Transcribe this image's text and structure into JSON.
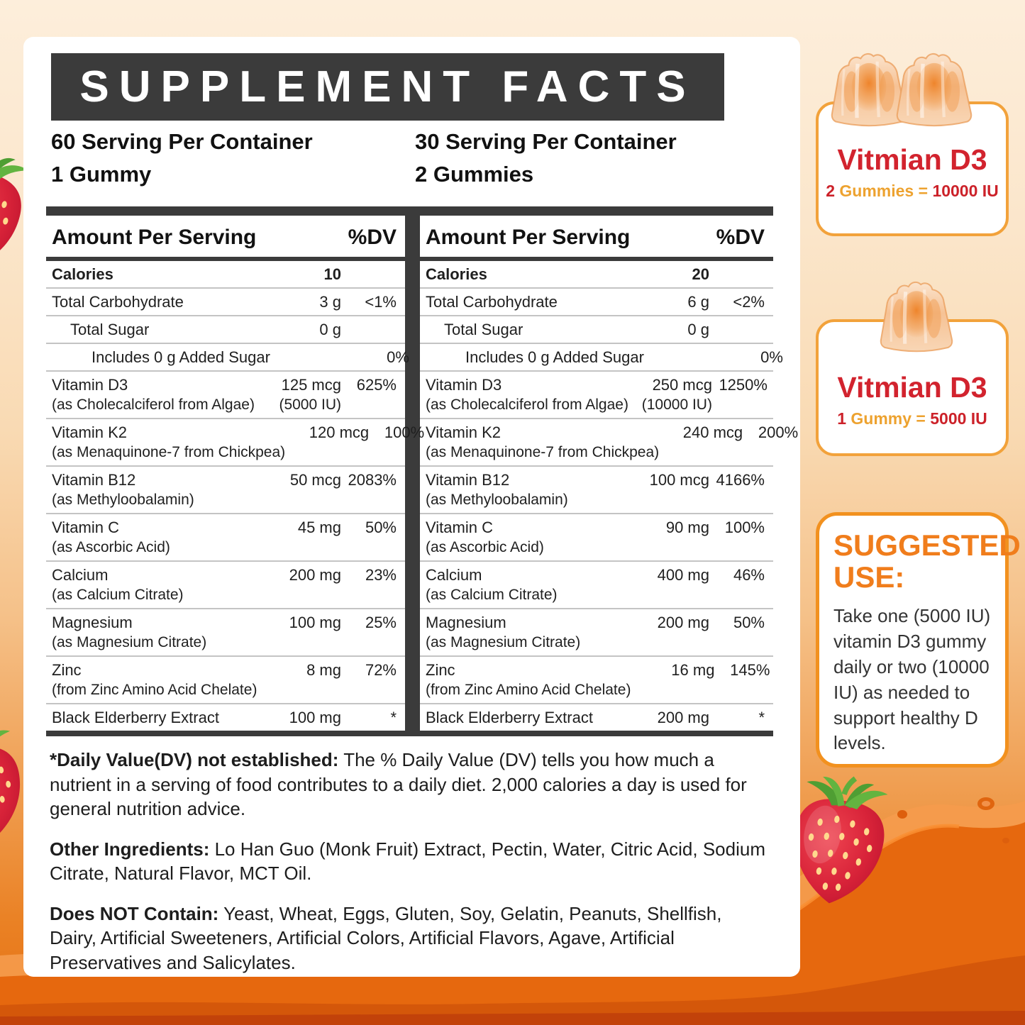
{
  "header": {
    "title": "SUPPLEMENT FACTS"
  },
  "servings": [
    {
      "line1": "60 Serving Per Container",
      "line2": "1 Gummy"
    },
    {
      "line1": "30 Serving Per Container",
      "line2": "2 Gummies"
    }
  ],
  "tables": [
    {
      "header": {
        "amount_label": "Amount Per Serving",
        "dv_label": "%DV"
      },
      "rows": [
        {
          "name": "Calories",
          "bold": true,
          "amount": "10",
          "dv": ""
        },
        {
          "name": "Total Carbohydrate",
          "amount": "3 g",
          "dv": "<1%"
        },
        {
          "name": "Total Sugar",
          "indent": 1,
          "amount": "0 g",
          "dv": ""
        },
        {
          "name": "Includes 0 g Added Sugar",
          "indent": 2,
          "amount": "",
          "dv": "0%"
        },
        {
          "name": "Vitamin D3",
          "sub": "(as Cholecalciferol from Algae)",
          "amount": "125 mcg",
          "amount2": "(5000 IU)",
          "dv": "625%"
        },
        {
          "name": "Vitamin K2",
          "sub": "(as Menaquinone-7 from Chickpea)",
          "amount": "120 mcg",
          "dv": "100%"
        },
        {
          "name": "Vitamin B12",
          "sub": "(as Methyloobalamin)",
          "amount": "50 mcg",
          "dv": "2083%"
        },
        {
          "name": "Vitamin C",
          "sub": "(as Ascorbic Acid)",
          "amount": "45 mg",
          "dv": "50%"
        },
        {
          "name": "Calcium",
          "sub": "(as Calcium Citrate)",
          "amount": "200 mg",
          "dv": "23%"
        },
        {
          "name": "Magnesium",
          "sub": "(as Magnesium Citrate)",
          "amount": "100 mg",
          "dv": "25%"
        },
        {
          "name": "Zinc",
          "sub": "(from Zinc Amino Acid Chelate)",
          "amount": "8 mg",
          "dv": "72%"
        },
        {
          "name": "Black Elderberry Extract",
          "amount": "100 mg",
          "dv": "*"
        }
      ]
    },
    {
      "header": {
        "amount_label": "Amount Per Serving",
        "dv_label": "%DV"
      },
      "rows": [
        {
          "name": "Calories",
          "bold": true,
          "amount": "20",
          "dv": ""
        },
        {
          "name": "Total Carbohydrate",
          "amount": "6 g",
          "dv": "<2%"
        },
        {
          "name": "Total Sugar",
          "indent": 1,
          "amount": "0 g",
          "dv": ""
        },
        {
          "name": "Includes 0 g Added Sugar",
          "indent": 2,
          "amount": "",
          "dv": "0%"
        },
        {
          "name": "Vitamin D3",
          "sub": "(as Cholecalciferol from Algae)",
          "amount": "250 mcg",
          "amount2": "(10000 IU)",
          "dv": "1250%"
        },
        {
          "name": "Vitamin K2",
          "sub": "(as Menaquinone-7 from Chickpea)",
          "amount": "240 mcg",
          "dv": "200%"
        },
        {
          "name": "Vitamin B12",
          "sub": "(as Methyloobalamin)",
          "amount": "100 mcg",
          "dv": "4166%"
        },
        {
          "name": "Vitamin C",
          "sub": "(as Ascorbic Acid)",
          "amount": "90 mg",
          "dv": "100%"
        },
        {
          "name": "Calcium",
          "sub": "(as Calcium Citrate)",
          "amount": "400 mg",
          "dv": "46%"
        },
        {
          "name": "Magnesium",
          "sub": "(as Magnesium Citrate)",
          "amount": "200 mg",
          "dv": "50%"
        },
        {
          "name": "Zinc",
          "sub": "(from Zinc Amino Acid Chelate)",
          "amount": "16 mg",
          "dv": "145%"
        },
        {
          "name": "Black Elderberry Extract",
          "amount": "200 mg",
          "dv": "*"
        }
      ]
    }
  ],
  "footnotes": [
    {
      "bold": "*Daily Value(DV) not established:",
      "text": " The % Daily Value (DV) tells you how much a nutrient in a serving of food contributes to a daily diet. 2,000 calories a day is used for general nutrition advice."
    },
    {
      "bold": "Other Ingredients:",
      "text": " Lo Han Guo (Monk Fruit) Extract, Pectin, Water, Citric Acid, Sodium Citrate, Natural Flavor, MCT Oil."
    },
    {
      "bold": "Does NOT Contain:",
      "text": " Yeast, Wheat, Eggs, Gluten, Soy, Gelatin, Peanuts, Shellfish, Dairy, Artificial Sweeteners, Artificial Colors, Artificial Flavors, Agave, Artificial Preservatives and Salicylates."
    }
  ],
  "badges": [
    {
      "title": "Vitmian D3",
      "count": "2",
      "unit": "Gummies",
      "eq": "=",
      "value": "10000 IU"
    },
    {
      "title": "Vitmian D3",
      "count": "1",
      "unit": "Gummy",
      "eq": "=",
      "value": "5000 IU"
    }
  ],
  "suggested_use": {
    "title_line1": "SUGGESTED",
    "title_line2": "USE:",
    "text": "Take one (5000 IU) vitamin D3 gummy daily or two (10000 IU) as needed to support healthy D levels."
  },
  "colors": {
    "panel_dark": "#3b3b3b",
    "accent_orange": "#f08021",
    "badge_red": "#cc2129",
    "badge_gold": "#eda22f",
    "bg_orange_splash": "#e6680e",
    "strawberry_red": "#c4122e"
  }
}
